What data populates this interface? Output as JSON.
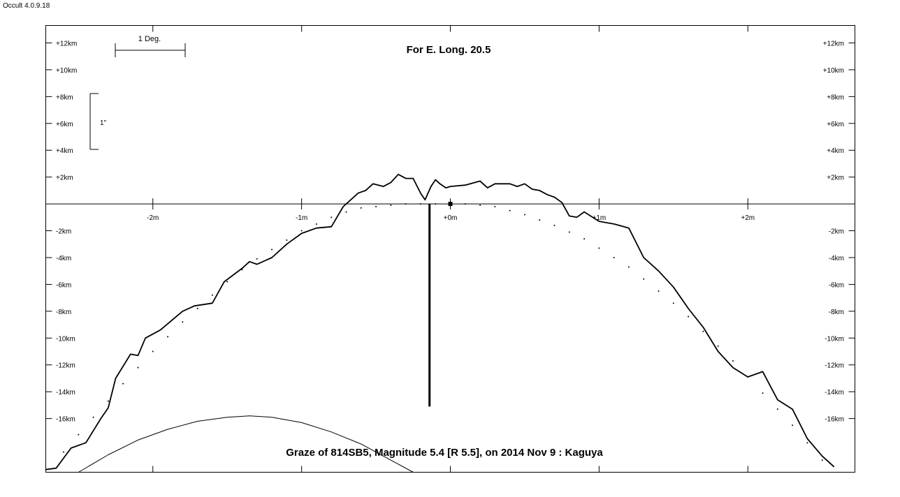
{
  "window": {
    "app_title": "Occult 4.0.9.18"
  },
  "chart_data": {
    "type": "line",
    "title": "For E. Long. 20.5",
    "caption": "Graze of  814SB5,  Magnitude 5.4 [R 5.5],  on 2014 Nov  9  :  Kaguya",
    "x_ticks": [
      {
        "value": -2,
        "label": "-2m"
      },
      {
        "value": -1,
        "label": "-1m"
      },
      {
        "value": 0,
        "label": "+0m"
      },
      {
        "value": 1,
        "label": "+1m"
      },
      {
        "value": 2,
        "label": "+2m"
      }
    ],
    "y_ticks": [
      {
        "value": 12,
        "label": "+12km"
      },
      {
        "value": 10,
        "label": "+10km"
      },
      {
        "value": 8,
        "label": "+8km"
      },
      {
        "value": 6,
        "label": "+6km"
      },
      {
        "value": 4,
        "label": "+4km"
      },
      {
        "value": 2,
        "label": "+2km"
      },
      {
        "value": -2,
        "label": "-2km"
      },
      {
        "value": -4,
        "label": "-4km"
      },
      {
        "value": -6,
        "label": "-6km"
      },
      {
        "value": -8,
        "label": "-8km"
      },
      {
        "value": -10,
        "label": "-10km"
      },
      {
        "value": -12,
        "label": "-12km"
      },
      {
        "value": -14,
        "label": "-14km"
      },
      {
        "value": -16,
        "label": "-16km"
      }
    ],
    "xlim": [
      -2.72,
      2.72
    ],
    "ylim": [
      -20,
      13.3
    ],
    "scale_bars": {
      "deg_label": "1 Deg.",
      "arcsec_label": "1\""
    },
    "series": [
      {
        "style": "solid",
        "x": [
          -2.72,
          -2.65,
          -2.55,
          -2.45,
          -2.35,
          -2.3,
          -2.25,
          -2.15,
          -2.1,
          -2.05,
          -1.95,
          -1.8,
          -1.72,
          -1.6,
          -1.52,
          -1.4,
          -1.35,
          -1.3,
          -1.2,
          -1.1,
          -1.0,
          -0.9,
          -0.8,
          -0.72,
          -0.62,
          -0.57,
          -0.52,
          -0.45,
          -0.4,
          -0.35,
          -0.3,
          -0.25,
          -0.2,
          -0.17,
          -0.13,
          -0.1,
          -0.07,
          -0.03,
          0.0,
          0.1,
          0.2,
          0.25,
          0.3,
          0.4,
          0.45,
          0.5,
          0.55,
          0.6,
          0.65,
          0.7,
          0.75,
          0.8,
          0.85,
          0.9,
          1.0,
          1.1,
          1.2,
          1.3,
          1.4,
          1.5,
          1.6,
          1.7,
          1.8,
          1.9,
          2.0,
          2.1,
          2.2,
          2.3,
          2.4,
          2.5,
          2.58
        ],
        "y": [
          -19.8,
          -19.7,
          -18.2,
          -17.8,
          -16,
          -15.2,
          -13,
          -11.2,
          -11.3,
          -10,
          -9.4,
          -8,
          -7.6,
          -7.4,
          -5.8,
          -4.8,
          -4.3,
          -4.5,
          -4,
          -3,
          -2.2,
          -1.8,
          -1.7,
          -0.2,
          0.8,
          1,
          1.5,
          1.3,
          1.6,
          2.2,
          1.9,
          1.9,
          0.8,
          0.3,
          1.3,
          1.8,
          1.5,
          1.2,
          1.3,
          1.4,
          1.7,
          1.2,
          1.5,
          1.5,
          1.3,
          1.5,
          1.1,
          1.0,
          0.7,
          0.5,
          0.1,
          -0.9,
          -1,
          -0.6,
          -1.3,
          -1.5,
          -1.8,
          -4,
          -5,
          -6.2,
          -7.8,
          -9.2,
          -11,
          -12.2,
          -12.9,
          -12.5,
          -14.6,
          -15.3,
          -17.5,
          -18.8,
          -19.6
        ]
      },
      {
        "style": "dotted",
        "x": [
          -2.6,
          -2.5,
          -2.4,
          -2.3,
          -2.2,
          -2.1,
          -2.0,
          -1.9,
          -1.8,
          -1.7,
          -1.6,
          -1.5,
          -1.4,
          -1.3,
          -1.2,
          -1.1,
          -1.0,
          -0.9,
          -0.8,
          -0.7,
          -0.6,
          -0.5,
          -0.4,
          -0.3,
          -0.2,
          -0.1,
          0.0,
          0.1,
          0.2,
          0.3,
          0.4,
          0.5,
          0.6,
          0.7,
          0.8,
          0.9,
          1.0,
          1.1,
          1.2,
          1.3,
          1.4,
          1.5,
          1.6,
          1.7,
          1.8,
          1.9,
          2.0,
          2.1,
          2.2,
          2.3,
          2.4,
          2.5,
          2.6
        ],
        "y": [
          -18.5,
          -17.2,
          -15.9,
          -14.7,
          -13.4,
          -12.2,
          -11.0,
          -9.9,
          -8.8,
          -7.8,
          -6.8,
          -5.8,
          -4.9,
          -4.1,
          -3.4,
          -2.7,
          -2.0,
          -1.5,
          -1.0,
          -0.6,
          -0.3,
          -0.2,
          -0.1,
          0.0,
          0.0,
          0.0,
          0.0,
          0.0,
          -0.1,
          -0.2,
          -0.5,
          -0.8,
          -1.2,
          -1.6,
          -2.1,
          -2.6,
          -3.3,
          -4.0,
          -4.7,
          -5.6,
          -6.5,
          -7.4,
          -8.4,
          -9.5,
          -10.6,
          -11.7,
          -12.9,
          -14.1,
          -15.3,
          -16.5,
          -17.8,
          -19.1,
          -20.4
        ]
      },
      {
        "style": "thin-arc",
        "x": [
          -2.5,
          -2.3,
          -2.1,
          -1.9,
          -1.7,
          -1.5,
          -1.35,
          -1.2,
          -1.0,
          -0.8,
          -0.6,
          -0.4,
          -0.25
        ],
        "y": [
          -20,
          -18.7,
          -17.6,
          -16.8,
          -16.2,
          -15.9,
          -15.8,
          -15.9,
          -16.3,
          -17.0,
          -17.9,
          -19.1,
          -20
        ]
      }
    ],
    "markers": [
      {
        "x": -0.14,
        "y_top": 0,
        "y_bottom": -15.1,
        "style": "thick-line"
      },
      {
        "x": 0.0,
        "y": 0,
        "style": "square"
      }
    ]
  }
}
